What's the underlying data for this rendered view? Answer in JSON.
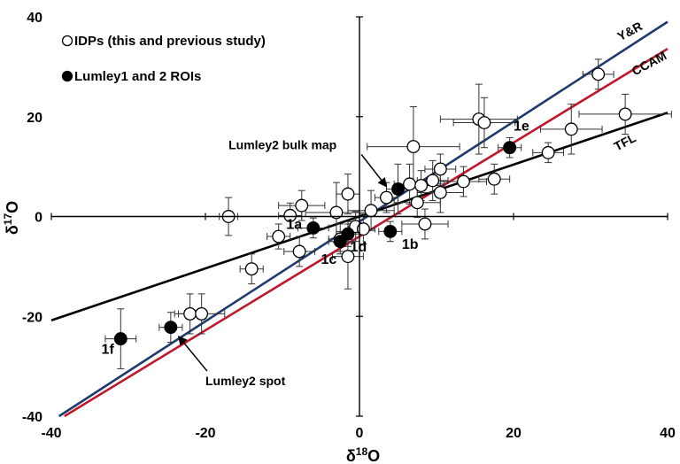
{
  "chart_data": {
    "type": "scatter",
    "xlabel": {
      "prefix": "δ",
      "sup": "18",
      "suffix": "O"
    },
    "ylabel": {
      "prefix": "δ",
      "sup": "17",
      "suffix": "O"
    },
    "xlim": [
      -40,
      40
    ],
    "ylim": [
      -40,
      40
    ],
    "xticks": [
      -40,
      -20,
      0,
      20,
      40
    ],
    "yticks": [
      -40,
      -20,
      0,
      20,
      40
    ],
    "grid": false,
    "legend_position": "top-left",
    "legend": [
      {
        "label": "IDPs (this and previous study)",
        "marker": "open-circle"
      },
      {
        "label": "Lumley1 and 2 ROIs",
        "marker": "filled-circle"
      }
    ],
    "lines": [
      {
        "name": "Y&R",
        "color": "#1f3a6e",
        "slope": 1.0,
        "intercept": -1.0
      },
      {
        "name": "CCAM",
        "color": "#c0182b",
        "slope": 0.94,
        "intercept": -4.0
      },
      {
        "name": "TFL",
        "color": "#000000",
        "slope": 0.52,
        "intercept": 0.0
      }
    ],
    "series": [
      {
        "name": "IDPs (this and previous study)",
        "marker": "open-circle",
        "points": [
          {
            "x": -17,
            "y": 0,
            "xerr": 1.2,
            "yerr": 3.8
          },
          {
            "x": -10.5,
            "y": -4,
            "xerr": 1.5,
            "yerr": 2.5
          },
          {
            "x": -9,
            "y": 0.2,
            "xerr": 1.5,
            "yerr": 2.5
          },
          {
            "x": -7.5,
            "y": 2.2,
            "xerr": 3,
            "yerr": 3
          },
          {
            "x": -7.8,
            "y": -7,
            "xerr": 2,
            "yerr": 3
          },
          {
            "x": -14,
            "y": -10.5,
            "xerr": 1.5,
            "yerr": 3
          },
          {
            "x": -3,
            "y": 0.8,
            "xerr": 4,
            "yerr": 6
          },
          {
            "x": -2.5,
            "y": -4.5,
            "xerr": 1.5,
            "yerr": 3
          },
          {
            "x": -1.5,
            "y": 4.5,
            "xerr": 1.5,
            "yerr": 4
          },
          {
            "x": -1.5,
            "y": -8,
            "xerr": 2,
            "yerr": 6.5
          },
          {
            "x": -0.5,
            "y": -2,
            "xerr": 1,
            "yerr": 3
          },
          {
            "x": 0.5,
            "y": -2.5,
            "xerr": 1.5,
            "yerr": 3
          },
          {
            "x": 1.5,
            "y": 1.2,
            "xerr": 3,
            "yerr": 4
          },
          {
            "x": 3.5,
            "y": 3.8,
            "xerr": 1.5,
            "yerr": 3
          },
          {
            "x": 6.5,
            "y": 6.5,
            "xerr": 2,
            "yerr": 4
          },
          {
            "x": 7.5,
            "y": 2.8,
            "xerr": 3,
            "yerr": 3
          },
          {
            "x": 8,
            "y": 6.2,
            "xerr": 3,
            "yerr": 3
          },
          {
            "x": 9.5,
            "y": 7.2,
            "xerr": 2,
            "yerr": 4
          },
          {
            "x": 10.5,
            "y": 9.5,
            "xerr": 2,
            "yerr": 3
          },
          {
            "x": 10.5,
            "y": 4.8,
            "xerr": 3,
            "yerr": 4
          },
          {
            "x": 7,
            "y": 14,
            "xerr": 6,
            "yerr": 8
          },
          {
            "x": 8.5,
            "y": -1.5,
            "xerr": 3,
            "yerr": 3
          },
          {
            "x": 13.5,
            "y": 7,
            "xerr": 3,
            "yerr": 3
          },
          {
            "x": 15.5,
            "y": 19.5,
            "xerr": 5,
            "yerr": 7
          },
          {
            "x": 16.2,
            "y": 18.8,
            "xerr": 4,
            "yerr": 5
          },
          {
            "x": 17.5,
            "y": 7.5,
            "xerr": 2,
            "yerr": 3
          },
          {
            "x": 24.5,
            "y": 12.8,
            "xerr": 2,
            "yerr": 2
          },
          {
            "x": 27.5,
            "y": 17.5,
            "xerr": 4,
            "yerr": 5
          },
          {
            "x": 31,
            "y": 28.5,
            "xerr": 2,
            "yerr": 3
          },
          {
            "x": 34.5,
            "y": 20.5,
            "xerr": 6,
            "yerr": 4
          },
          {
            "x": -22,
            "y": -19.5,
            "xerr": 2,
            "yerr": 4
          },
          {
            "x": -20.5,
            "y": -19.5,
            "xerr": 3,
            "yerr": 4
          }
        ]
      },
      {
        "name": "Lumley1 and 2 ROIs",
        "marker": "filled-circle",
        "points": [
          {
            "x": -31,
            "y": -24.5,
            "xerr": 2,
            "yerr": 6
          },
          {
            "x": -24.5,
            "y": -22.2,
            "xerr": 1.5,
            "yerr": 3
          },
          {
            "x": -6,
            "y": -2.3,
            "xerr": 2,
            "yerr": 2
          },
          {
            "x": -2.5,
            "y": -5,
            "xerr": 1.5,
            "yerr": 2
          },
          {
            "x": -1.5,
            "y": -3.5,
            "xerr": 1.5,
            "yerr": 2.5
          },
          {
            "x": 4,
            "y": -3,
            "xerr": 1.5,
            "yerr": 2
          },
          {
            "x": 5,
            "y": 5.5,
            "xerr": 1.5,
            "yerr": 5
          },
          {
            "x": 19.5,
            "y": 13.8,
            "xerr": 1.5,
            "yerr": 2
          }
        ]
      }
    ],
    "annotations": [
      {
        "text": "1a",
        "x": -9.5,
        "y": -2.5
      },
      {
        "text": "1b",
        "x": 5.5,
        "y": -6.5
      },
      {
        "text": "1c",
        "x": -5,
        "y": -9.5
      },
      {
        "text": "1d",
        "x": -1.2,
        "y": -7
      },
      {
        "text": "1e",
        "x": 20,
        "y": 17.2
      },
      {
        "text": "1f",
        "x": -33.5,
        "y": -27.5
      },
      {
        "text": "Lumley2 bulk map",
        "x": -17,
        "y": 13.5,
        "arrow_to": [
          3.5,
          6
        ]
      },
      {
        "text": "Lumley2 spot",
        "x": -20,
        "y": -33.8,
        "arrow_to": [
          -23.5,
          -24
        ]
      }
    ]
  }
}
